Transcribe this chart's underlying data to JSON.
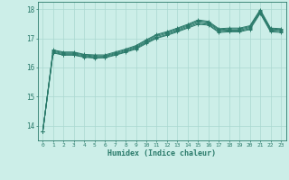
{
  "xlabel": "Humidex (Indice chaleur)",
  "bg_color": "#cceee8",
  "grid_color": "#aad8d0",
  "line_color": "#2a7a6a",
  "x_values": [
    0,
    1,
    2,
    3,
    4,
    5,
    6,
    7,
    8,
    9,
    10,
    11,
    12,
    13,
    14,
    15,
    16,
    17,
    18,
    19,
    20,
    21,
    22,
    23
  ],
  "lines": [
    [
      13.8,
      16.5,
      16.42,
      16.42,
      16.35,
      16.32,
      16.33,
      16.42,
      16.52,
      16.63,
      16.82,
      17.0,
      17.1,
      17.22,
      17.35,
      17.48,
      17.45,
      17.2,
      17.22,
      17.22,
      17.3,
      17.85,
      17.22,
      17.2
    ],
    [
      13.8,
      16.52,
      16.44,
      16.44,
      16.37,
      16.34,
      16.35,
      16.44,
      16.54,
      16.66,
      16.85,
      17.02,
      17.13,
      17.25,
      17.38,
      17.52,
      17.48,
      17.23,
      17.25,
      17.25,
      17.33,
      17.88,
      17.25,
      17.23
    ],
    [
      13.8,
      16.55,
      16.47,
      16.47,
      16.4,
      16.37,
      16.38,
      16.47,
      16.57,
      16.69,
      16.88,
      17.06,
      17.17,
      17.28,
      17.42,
      17.56,
      17.52,
      17.27,
      17.28,
      17.28,
      17.37,
      17.92,
      17.28,
      17.27
    ],
    [
      13.8,
      16.58,
      16.5,
      16.5,
      16.43,
      16.4,
      16.4,
      16.5,
      16.6,
      16.72,
      16.92,
      17.1,
      17.2,
      17.32,
      17.45,
      17.6,
      17.55,
      17.3,
      17.32,
      17.32,
      17.4,
      17.95,
      17.32,
      17.3
    ],
    [
      13.8,
      16.6,
      16.53,
      16.53,
      16.45,
      16.43,
      16.43,
      16.53,
      16.63,
      16.75,
      16.95,
      17.13,
      17.23,
      17.35,
      17.48,
      17.63,
      17.58,
      17.33,
      17.35,
      17.35,
      17.43,
      17.98,
      17.35,
      17.33
    ]
  ],
  "ylim": [
    13.5,
    18.25
  ],
  "yticks": [
    14,
    15,
    16,
    17,
    18
  ],
  "marker": "+",
  "markersize": 3,
  "linewidth": 0.7
}
